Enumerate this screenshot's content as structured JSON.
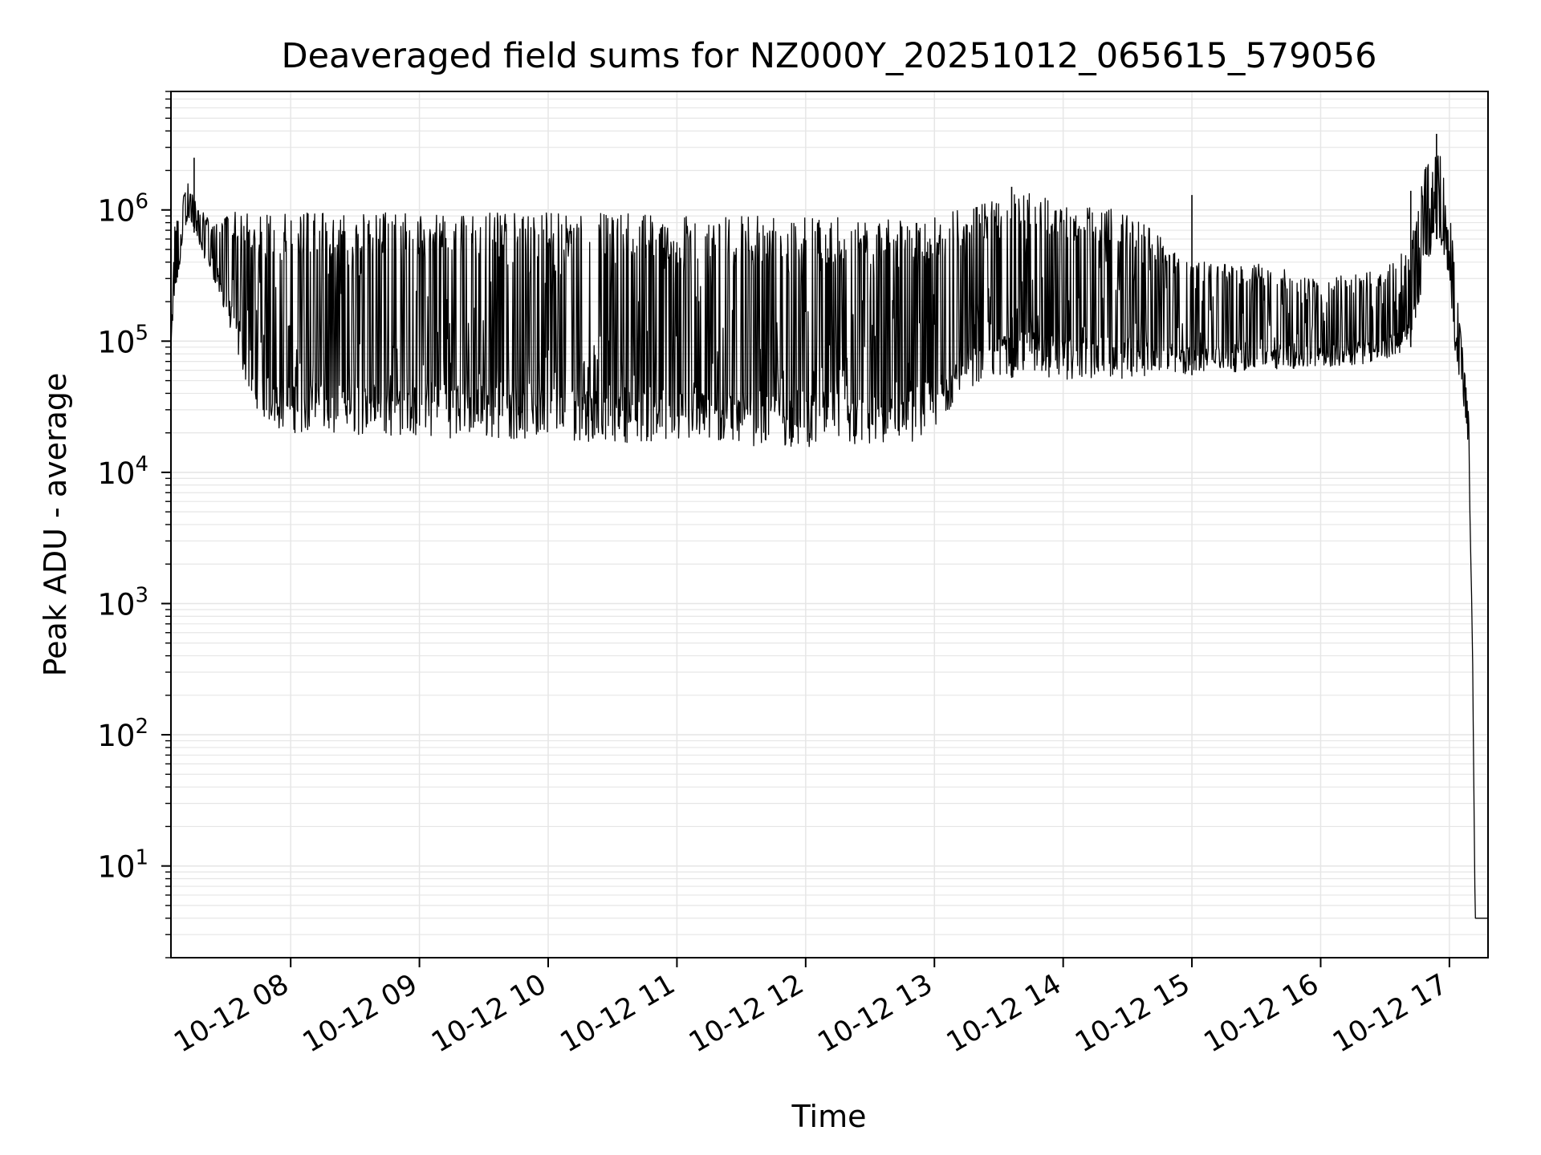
{
  "chart_data": {
    "type": "line",
    "title": "Deaveraged field sums for NZ000Y_20251012_065615_579056",
    "xlabel": "Time",
    "ylabel": "Peak ADU - average",
    "yscale": "log",
    "ylim": [
      2,
      8000000
    ],
    "xlim_hours": [
      7.07,
      17.3
    ],
    "grid": true,
    "line_color": "#000000",
    "grid_color": "#e6e6e6",
    "x_ticks": [
      {
        "hour": 8,
        "label": "10-12 08"
      },
      {
        "hour": 9,
        "label": "10-12 09"
      },
      {
        "hour": 10,
        "label": "10-12 10"
      },
      {
        "hour": 11,
        "label": "10-12 11"
      },
      {
        "hour": 12,
        "label": "10-12 12"
      },
      {
        "hour": 13,
        "label": "10-12 13"
      },
      {
        "hour": 14,
        "label": "10-12 14"
      },
      {
        "hour": 15,
        "label": "10-12 15"
      },
      {
        "hour": 16,
        "label": "10-12 16"
      },
      {
        "hour": 17,
        "label": "10-12 17"
      }
    ],
    "y_ticks": [
      {
        "value": 10,
        "base": "10",
        "exp": "1"
      },
      {
        "value": 100,
        "base": "10",
        "exp": "2"
      },
      {
        "value": 1000,
        "base": "10",
        "exp": "3"
      },
      {
        "value": 10000,
        "base": "10",
        "exp": "4"
      },
      {
        "value": 100000,
        "base": "10",
        "exp": "5"
      },
      {
        "value": 1000000,
        "base": "10",
        "exp": "6"
      }
    ],
    "series": [
      {
        "name": "field sums",
        "envelope": {
          "hours": [
            7.07,
            7.1,
            7.2,
            7.3,
            7.4,
            7.5,
            7.6,
            7.7,
            7.8,
            7.9,
            8.0,
            8.5,
            9.0,
            9.5,
            10.0,
            10.5,
            11.0,
            11.5,
            12.0,
            12.5,
            12.7,
            13.0,
            13.2,
            13.5,
            13.7,
            14.0,
            14.5,
            15.0,
            15.5,
            16.0,
            16.5,
            16.7,
            16.8,
            16.9,
            16.95,
            17.0,
            17.05,
            17.1,
            17.15,
            17.18,
            17.2,
            17.3
          ],
          "low": [
            90000,
            200000,
            900000,
            500000,
            300000,
            150000,
            70000,
            35000,
            25000,
            21000,
            20000,
            19000,
            18500,
            18000,
            17500,
            17000,
            16500,
            16000,
            15500,
            15000,
            15000,
            20000,
            40000,
            50000,
            55000,
            50000,
            52000,
            55000,
            60000,
            62000,
            70000,
            90000,
            300000,
            600000,
            500000,
            300000,
            70000,
            40000,
            15000,
            400,
            4,
            4
          ],
          "high": [
            90000,
            800000,
            1600000,
            1000000,
            800000,
            1000000,
            1000000,
            1000000,
            950000,
            950000,
            950000,
            950000,
            950000,
            950000,
            950000,
            950000,
            900000,
            900000,
            900000,
            850000,
            850000,
            900000,
            1000000,
            1200000,
            1400000,
            1100000,
            1000000,
            400000,
            400000,
            300000,
            350000,
            600000,
            2000000,
            3000000,
            2500000,
            1200000,
            300000,
            100000,
            30000,
            400,
            4,
            4
          ]
        },
        "peaks": [
          {
            "hour": 7.25,
            "value": 2500000
          },
          {
            "hour": 13.6,
            "value": 1500000
          },
          {
            "hour": 16.9,
            "value": 3800000
          },
          {
            "hour": 15.0,
            "value": 1300000
          },
          {
            "hour": 16.7,
            "value": 1400000
          }
        ]
      }
    ]
  }
}
